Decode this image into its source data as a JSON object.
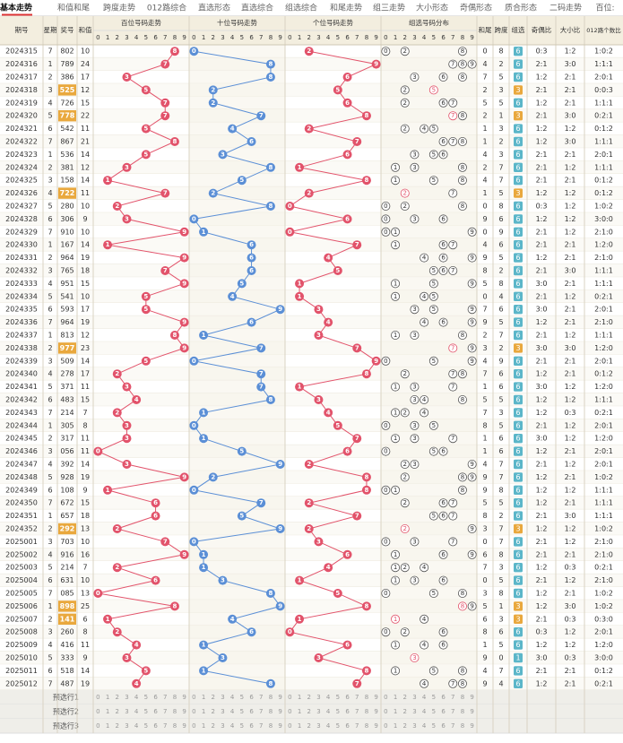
{
  "tabs": [
    "基本走势",
    "和值和尾",
    "跨度走势",
    "012路综合",
    "直选形态",
    "直选综合",
    "组选综合",
    "和尾走势",
    "组三走势",
    "大小形态",
    "奇偶形态",
    "质合形态",
    "二码走势",
    "百位:"
  ],
  "header": {
    "period": "期号",
    "weekday": "星期",
    "number": "奖号",
    "sum": "和值",
    "sections": [
      "百位号码走势",
      "十位号码走势",
      "个位号码走势",
      "组选号码分布"
    ],
    "digits": [
      0,
      1,
      2,
      3,
      4,
      5,
      6,
      7,
      8,
      9
    ],
    "sum_tail": "和尾",
    "span": "跨度",
    "group": "组选",
    "odd_even": "奇偶比",
    "big_small": "大小比",
    "route012": "012路个数比"
  },
  "rows": [
    {
      "period": "2024315",
      "weekday": 7,
      "number": "802",
      "sum": 10,
      "digits": [
        8,
        0,
        2
      ],
      "sum_tail": 0,
      "span": 8,
      "group": 6,
      "odd_even": "0:3",
      "big_small": "1:2",
      "route012": "1:0:2"
    },
    {
      "period": "2024316",
      "weekday": 1,
      "number": "789",
      "sum": 24,
      "digits": [
        7,
        8,
        9
      ],
      "sum_tail": 4,
      "span": 2,
      "group": 6,
      "odd_even": "2:1",
      "big_small": "3:0",
      "route012": "1:1:1"
    },
    {
      "period": "2024317",
      "weekday": 2,
      "number": "386",
      "sum": 17,
      "digits": [
        3,
        8,
        6
      ],
      "sum_tail": 7,
      "span": 5,
      "group": 6,
      "odd_even": "1:2",
      "big_small": "2:1",
      "route012": "2:0:1"
    },
    {
      "period": "2024318",
      "weekday": 3,
      "number": "525",
      "sum": 12,
      "digits": [
        5,
        2,
        5
      ],
      "sum_tail": 2,
      "span": 3,
      "group": 3,
      "odd_even": "2:1",
      "big_small": "2:1",
      "route012": "0:0:3"
    },
    {
      "period": "2024319",
      "weekday": 4,
      "number": "726",
      "sum": 15,
      "digits": [
        7,
        2,
        6
      ],
      "sum_tail": 5,
      "span": 5,
      "group": 6,
      "odd_even": "1:2",
      "big_small": "2:1",
      "route012": "1:1:1"
    },
    {
      "period": "2024320",
      "weekday": 5,
      "number": "778",
      "sum": 22,
      "digits": [
        7,
        7,
        8
      ],
      "sum_tail": 2,
      "span": 1,
      "group": 3,
      "odd_even": "2:1",
      "big_small": "3:0",
      "route012": "0:2:1"
    },
    {
      "period": "2024321",
      "weekday": 6,
      "number": "542",
      "sum": 11,
      "digits": [
        5,
        4,
        2
      ],
      "sum_tail": 1,
      "span": 3,
      "group": 6,
      "odd_even": "1:2",
      "big_small": "1:2",
      "route012": "0:1:2"
    },
    {
      "period": "2024322",
      "weekday": 7,
      "number": "867",
      "sum": 21,
      "digits": [
        8,
        6,
        7
      ],
      "sum_tail": 1,
      "span": 2,
      "group": 6,
      "odd_even": "1:2",
      "big_small": "3:0",
      "route012": "1:1:1"
    },
    {
      "period": "2024323",
      "weekday": 1,
      "number": "536",
      "sum": 14,
      "digits": [
        5,
        3,
        6
      ],
      "sum_tail": 4,
      "span": 3,
      "group": 6,
      "odd_even": "2:1",
      "big_small": "2:1",
      "route012": "2:0:1"
    },
    {
      "period": "2024324",
      "weekday": 2,
      "number": "381",
      "sum": 12,
      "digits": [
        3,
        8,
        1
      ],
      "sum_tail": 2,
      "span": 7,
      "group": 6,
      "odd_even": "2:1",
      "big_small": "1:2",
      "route012": "1:1:1"
    },
    {
      "period": "2024325",
      "weekday": 3,
      "number": "158",
      "sum": 14,
      "digits": [
        1,
        5,
        8
      ],
      "sum_tail": 4,
      "span": 7,
      "group": 6,
      "odd_even": "2:1",
      "big_small": "2:1",
      "route012": "0:1:2"
    },
    {
      "period": "2024326",
      "weekday": 4,
      "number": "722",
      "sum": 11,
      "digits": [
        7,
        2,
        2
      ],
      "sum_tail": 1,
      "span": 5,
      "group": 3,
      "odd_even": "1:2",
      "big_small": "1:2",
      "route012": "0:1:2"
    },
    {
      "period": "2024327",
      "weekday": 5,
      "number": "280",
      "sum": 10,
      "digits": [
        2,
        8,
        0
      ],
      "sum_tail": 0,
      "span": 8,
      "group": 6,
      "odd_even": "0:3",
      "big_small": "1:2",
      "route012": "1:0:2"
    },
    {
      "period": "2024328",
      "weekday": 6,
      "number": "306",
      "sum": 9,
      "digits": [
        3,
        0,
        6
      ],
      "sum_tail": 9,
      "span": 6,
      "group": 6,
      "odd_even": "1:2",
      "big_small": "1:2",
      "route012": "3:0:0"
    },
    {
      "period": "2024329",
      "weekday": 7,
      "number": "910",
      "sum": 10,
      "digits": [
        9,
        1,
        0
      ],
      "sum_tail": 0,
      "span": 9,
      "group": 6,
      "odd_even": "2:1",
      "big_small": "1:2",
      "route012": "2:1:0"
    },
    {
      "period": "2024330",
      "weekday": 1,
      "number": "167",
      "sum": 14,
      "digits": [
        1,
        6,
        7
      ],
      "sum_tail": 4,
      "span": 6,
      "group": 6,
      "odd_even": "2:1",
      "big_small": "2:1",
      "route012": "1:2:0"
    },
    {
      "period": "2024331",
      "weekday": 2,
      "number": "964",
      "sum": 19,
      "digits": [
        9,
        6,
        4
      ],
      "sum_tail": 9,
      "span": 5,
      "group": 6,
      "odd_even": "1:2",
      "big_small": "2:1",
      "route012": "2:1:0"
    },
    {
      "period": "2024332",
      "weekday": 3,
      "number": "765",
      "sum": 18,
      "digits": [
        7,
        6,
        5
      ],
      "sum_tail": 8,
      "span": 2,
      "group": 6,
      "odd_even": "2:1",
      "big_small": "3:0",
      "route012": "1:1:1"
    },
    {
      "period": "2024333",
      "weekday": 4,
      "number": "951",
      "sum": 15,
      "digits": [
        9,
        5,
        1
      ],
      "sum_tail": 5,
      "span": 8,
      "group": 6,
      "odd_even": "3:0",
      "big_small": "2:1",
      "route012": "1:1:1"
    },
    {
      "period": "2024334",
      "weekday": 5,
      "number": "541",
      "sum": 10,
      "digits": [
        5,
        4,
        1
      ],
      "sum_tail": 0,
      "span": 4,
      "group": 6,
      "odd_even": "2:1",
      "big_small": "1:2",
      "route012": "0:2:1"
    },
    {
      "period": "2024335",
      "weekday": 6,
      "number": "593",
      "sum": 17,
      "digits": [
        5,
        9,
        3
      ],
      "sum_tail": 7,
      "span": 6,
      "group": 6,
      "odd_even": "3:0",
      "big_small": "2:1",
      "route012": "2:0:1"
    },
    {
      "period": "2024336",
      "weekday": 7,
      "number": "964",
      "sum": 19,
      "digits": [
        9,
        6,
        4
      ],
      "sum_tail": 9,
      "span": 5,
      "group": 6,
      "odd_even": "1:2",
      "big_small": "2:1",
      "route012": "2:1:0"
    },
    {
      "period": "2024337",
      "weekday": 1,
      "number": "813",
      "sum": 12,
      "digits": [
        8,
        1,
        3
      ],
      "sum_tail": 2,
      "span": 7,
      "group": 6,
      "odd_even": "2:1",
      "big_small": "1:2",
      "route012": "1:1:1"
    },
    {
      "period": "2024338",
      "weekday": 2,
      "number": "977",
      "sum": 23,
      "digits": [
        9,
        7,
        7
      ],
      "sum_tail": 3,
      "span": 2,
      "group": 3,
      "odd_even": "3:0",
      "big_small": "3:0",
      "route012": "1:2:0"
    },
    {
      "period": "2024339",
      "weekday": 3,
      "number": "509",
      "sum": 14,
      "digits": [
        5,
        0,
        9
      ],
      "sum_tail": 4,
      "span": 9,
      "group": 6,
      "odd_even": "2:1",
      "big_small": "2:1",
      "route012": "2:0:1"
    },
    {
      "period": "2024340",
      "weekday": 4,
      "number": "278",
      "sum": 17,
      "digits": [
        2,
        7,
        8
      ],
      "sum_tail": 7,
      "span": 6,
      "group": 6,
      "odd_even": "1:2",
      "big_small": "2:1",
      "route012": "0:1:2"
    },
    {
      "period": "2024341",
      "weekday": 5,
      "number": "371",
      "sum": 11,
      "digits": [
        3,
        7,
        1
      ],
      "sum_tail": 1,
      "span": 6,
      "group": 6,
      "odd_even": "3:0",
      "big_small": "1:2",
      "route012": "1:2:0"
    },
    {
      "period": "2024342",
      "weekday": 6,
      "number": "483",
      "sum": 15,
      "digits": [
        4,
        8,
        3
      ],
      "sum_tail": 5,
      "span": 5,
      "group": 6,
      "odd_even": "1:2",
      "big_small": "1:2",
      "route012": "1:1:1"
    },
    {
      "period": "2024343",
      "weekday": 7,
      "number": "214",
      "sum": 7,
      "digits": [
        2,
        1,
        4
      ],
      "sum_tail": 7,
      "span": 3,
      "group": 6,
      "odd_even": "1:2",
      "big_small": "0:3",
      "route012": "0:2:1"
    },
    {
      "period": "2024344",
      "weekday": 1,
      "number": "305",
      "sum": 8,
      "digits": [
        3,
        0,
        5
      ],
      "sum_tail": 8,
      "span": 5,
      "group": 6,
      "odd_even": "2:1",
      "big_small": "1:2",
      "route012": "2:0:1"
    },
    {
      "period": "2024345",
      "weekday": 2,
      "number": "317",
      "sum": 11,
      "digits": [
        3,
        1,
        7
      ],
      "sum_tail": 1,
      "span": 6,
      "group": 6,
      "odd_even": "3:0",
      "big_small": "1:2",
      "route012": "1:2:0"
    },
    {
      "period": "2024346",
      "weekday": 3,
      "number": "056",
      "sum": 11,
      "digits": [
        0,
        5,
        6
      ],
      "sum_tail": 1,
      "span": 6,
      "group": 6,
      "odd_even": "1:2",
      "big_small": "2:1",
      "route012": "2:0:1"
    },
    {
      "period": "2024347",
      "weekday": 4,
      "number": "392",
      "sum": 14,
      "digits": [
        3,
        9,
        2
      ],
      "sum_tail": 4,
      "span": 7,
      "group": 6,
      "odd_even": "2:1",
      "big_small": "1:2",
      "route012": "2:0:1"
    },
    {
      "period": "2024348",
      "weekday": 5,
      "number": "928",
      "sum": 19,
      "digits": [
        9,
        2,
        8
      ],
      "sum_tail": 9,
      "span": 7,
      "group": 6,
      "odd_even": "1:2",
      "big_small": "2:1",
      "route012": "1:0:2"
    },
    {
      "period": "2024349",
      "weekday": 6,
      "number": "108",
      "sum": 9,
      "digits": [
        1,
        0,
        8
      ],
      "sum_tail": 9,
      "span": 8,
      "group": 6,
      "odd_even": "1:2",
      "big_small": "1:2",
      "route012": "1:1:1"
    },
    {
      "period": "2024350",
      "weekday": 7,
      "number": "672",
      "sum": 15,
      "digits": [
        6,
        7,
        2
      ],
      "sum_tail": 5,
      "span": 5,
      "group": 6,
      "odd_even": "1:2",
      "big_small": "2:1",
      "route012": "1:1:1"
    },
    {
      "period": "2024351",
      "weekday": 1,
      "number": "657",
      "sum": 18,
      "digits": [
        6,
        5,
        7
      ],
      "sum_tail": 8,
      "span": 2,
      "group": 6,
      "odd_even": "2:1",
      "big_small": "3:0",
      "route012": "1:1:1"
    },
    {
      "period": "2024352",
      "weekday": 2,
      "number": "292",
      "sum": 13,
      "digits": [
        2,
        9,
        2
      ],
      "sum_tail": 3,
      "span": 7,
      "group": 3,
      "odd_even": "1:2",
      "big_small": "1:2",
      "route012": "1:0:2"
    },
    {
      "period": "2025001",
      "weekday": 3,
      "number": "703",
      "sum": 10,
      "digits": [
        7,
        0,
        3
      ],
      "sum_tail": 0,
      "span": 7,
      "group": 6,
      "odd_even": "2:1",
      "big_small": "1:2",
      "route012": "2:1:0"
    },
    {
      "period": "2025002",
      "weekday": 4,
      "number": "916",
      "sum": 16,
      "digits": [
        9,
        1,
        6
      ],
      "sum_tail": 6,
      "span": 8,
      "group": 6,
      "odd_even": "2:1",
      "big_small": "2:1",
      "route012": "2:1:0"
    },
    {
      "period": "2025003",
      "weekday": 5,
      "number": "214",
      "sum": 7,
      "digits": [
        2,
        1,
        4
      ],
      "sum_tail": 7,
      "span": 3,
      "group": 6,
      "odd_even": "1:2",
      "big_small": "0:3",
      "route012": "0:2:1"
    },
    {
      "period": "2025004",
      "weekday": 6,
      "number": "631",
      "sum": 10,
      "digits": [
        6,
        3,
        1
      ],
      "sum_tail": 0,
      "span": 5,
      "group": 6,
      "odd_even": "2:1",
      "big_small": "1:2",
      "route012": "2:1:0"
    },
    {
      "period": "2025005",
      "weekday": 7,
      "number": "085",
      "sum": 13,
      "digits": [
        0,
        8,
        5
      ],
      "sum_tail": 3,
      "span": 8,
      "group": 6,
      "odd_even": "1:2",
      "big_small": "2:1",
      "route012": "1:0:2"
    },
    {
      "period": "2025006",
      "weekday": 1,
      "number": "898",
      "sum": 25,
      "digits": [
        8,
        9,
        8
      ],
      "sum_tail": 5,
      "span": 1,
      "group": 3,
      "odd_even": "1:2",
      "big_small": "3:0",
      "route012": "1:0:2"
    },
    {
      "period": "2025007",
      "weekday": 2,
      "number": "141",
      "sum": 6,
      "digits": [
        1,
        4,
        1
      ],
      "sum_tail": 6,
      "span": 3,
      "group": 3,
      "odd_even": "2:1",
      "big_small": "0:3",
      "route012": "0:3:0"
    },
    {
      "period": "2025008",
      "weekday": 3,
      "number": "260",
      "sum": 8,
      "digits": [
        2,
        6,
        0
      ],
      "sum_tail": 8,
      "span": 6,
      "group": 6,
      "odd_even": "0:3",
      "big_small": "1:2",
      "route012": "2:0:1"
    },
    {
      "period": "2025009",
      "weekday": 4,
      "number": "416",
      "sum": 11,
      "digits": [
        4,
        1,
        6
      ],
      "sum_tail": 1,
      "span": 5,
      "group": 6,
      "odd_even": "1:2",
      "big_small": "1:2",
      "route012": "1:2:0"
    },
    {
      "period": "2025010",
      "weekday": 5,
      "number": "333",
      "sum": 9,
      "digits": [
        3,
        3,
        3
      ],
      "sum_tail": 9,
      "span": 0,
      "group": 1,
      "odd_even": "3:0",
      "big_small": "0:3",
      "route012": "3:0:0"
    },
    {
      "period": "2025011",
      "weekday": 6,
      "number": "518",
      "sum": 14,
      "digits": [
        5,
        1,
        8
      ],
      "sum_tail": 4,
      "span": 7,
      "group": 6,
      "odd_even": "2:1",
      "big_small": "2:1",
      "route012": "0:1:2"
    },
    {
      "period": "2025012",
      "weekday": 7,
      "number": "487",
      "sum": 19,
      "digits": [
        4,
        8,
        7
      ],
      "sum_tail": 9,
      "span": 4,
      "group": 6,
      "odd_even": "1:2",
      "big_small": "2:1",
      "route012": "0:2:1"
    }
  ],
  "footer_rows": [
    "预选行1",
    "预选行2",
    "预选行3"
  ]
}
